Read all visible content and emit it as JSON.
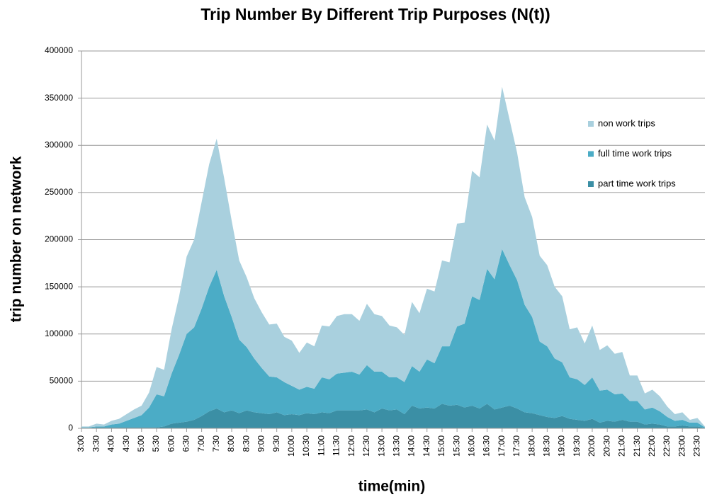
{
  "chart_data": {
    "type": "stacked_area",
    "title": "Trip Number By Different Trip Purposes (N(t))",
    "xlabel": "time(min)",
    "ylabel": "trip number on network",
    "categories": [
      "3:00",
      null,
      "3:30",
      null,
      "4:00",
      null,
      "4:30",
      null,
      "5:00",
      null,
      "5:30",
      null,
      "6:00",
      null,
      "6:30",
      null,
      "7:00",
      null,
      "7:30",
      null,
      "8:00",
      null,
      "8:30",
      null,
      "9:00",
      null,
      "9:30",
      null,
      "10:00",
      null,
      "10:30",
      null,
      "11:00",
      null,
      "11:30",
      null,
      "12:00",
      null,
      "12:30",
      null,
      "13:00",
      null,
      "13:30",
      null,
      "14:00",
      null,
      "14:30",
      null,
      "15:00",
      null,
      "15:30",
      null,
      "16:00",
      null,
      "16:30",
      null,
      "17:00",
      null,
      "17:30",
      null,
      "18:00",
      null,
      "18:30",
      null,
      "19:00",
      null,
      "19:30",
      null,
      "20:00",
      null,
      "20:30",
      null,
      "21:00",
      null,
      "21:30",
      null,
      "22:00",
      null,
      "22:30",
      null,
      "23:00",
      null,
      "23:30",
      null
    ],
    "series": [
      {
        "name": "non work trips",
        "color": "#a9d0de",
        "values": [
          1000,
          1000,
          3000,
          2000,
          4000,
          5000,
          7000,
          9000,
          10000,
          16000,
          29000,
          28000,
          47000,
          62000,
          82000,
          93000,
          113000,
          130000,
          139000,
          125000,
          102000,
          84000,
          74000,
          64000,
          59000,
          55000,
          57000,
          48000,
          48000,
          39000,
          47000,
          45000,
          55000,
          56000,
          61000,
          62000,
          61000,
          57000,
          65000,
          61000,
          59000,
          55000,
          53000,
          50000,
          68000,
          62000,
          75000,
          76000,
          91000,
          89000,
          109000,
          107000,
          133000,
          130000,
          153000,
          147000,
          172000,
          154000,
          135000,
          114000,
          106000,
          91000,
          86000,
          76000,
          70000,
          51000,
          55000,
          44000,
          55000,
          43000,
          47000,
          43000,
          44000,
          27000,
          27000,
          17000,
          19000,
          16000,
          11000,
          7000,
          8000,
          3000,
          5000,
          1000
        ]
      },
      {
        "name": "full time work trips",
        "color": "#4bacc6",
        "values": [
          500,
          500,
          1000,
          1000,
          3000,
          4000,
          7000,
          10000,
          13000,
          21000,
          35000,
          32000,
          53000,
          72000,
          93000,
          98000,
          114000,
          132000,
          147000,
          123000,
          99000,
          78000,
          67000,
          57000,
          48000,
          40000,
          37000,
          35000,
          30000,
          27000,
          28000,
          27000,
          37000,
          36000,
          39000,
          40000,
          41000,
          38000,
          47000,
          43000,
          39000,
          35000,
          34000,
          34000,
          42000,
          39000,
          51000,
          48000,
          61000,
          63000,
          83000,
          89000,
          116000,
          115000,
          143000,
          138000,
          168000,
          149000,
          136000,
          114000,
          102000,
          78000,
          75000,
          63000,
          57000,
          44000,
          43000,
          38000,
          44000,
          34000,
          33000,
          29000,
          28000,
          22000,
          22000,
          16000,
          17000,
          14000,
          10000,
          6000,
          6000,
          4000,
          4000,
          500
        ]
      },
      {
        "name": "part time work trips",
        "color": "#3b8fa5",
        "values": [
          500,
          500,
          1000,
          1000,
          1000,
          1000,
          1000,
          1000,
          1000,
          1000,
          1000,
          2000,
          5000,
          6000,
          7000,
          9000,
          13000,
          18000,
          21000,
          17000,
          19000,
          16000,
          19000,
          17000,
          16000,
          15000,
          17000,
          14000,
          15000,
          14000,
          16000,
          15000,
          17000,
          16000,
          19000,
          19000,
          19000,
          19000,
          20000,
          17000,
          21000,
          19000,
          20000,
          15000,
          24000,
          21000,
          22000,
          21000,
          26000,
          24000,
          25000,
          22000,
          24000,
          21000,
          26000,
          20000,
          22000,
          24000,
          21000,
          17000,
          16000,
          14000,
          12000,
          11000,
          13000,
          10000,
          9000,
          8000,
          10000,
          6000,
          8000,
          7000,
          9000,
          7000,
          7000,
          4000,
          5000,
          4000,
          2000,
          2000,
          3000,
          2000,
          2000,
          500
        ]
      }
    ],
    "ylim": [
      0,
      400000
    ],
    "yticks": [
      0,
      50000,
      100000,
      150000,
      200000,
      250000,
      300000,
      350000,
      400000
    ],
    "grid": true,
    "legend": "right"
  }
}
